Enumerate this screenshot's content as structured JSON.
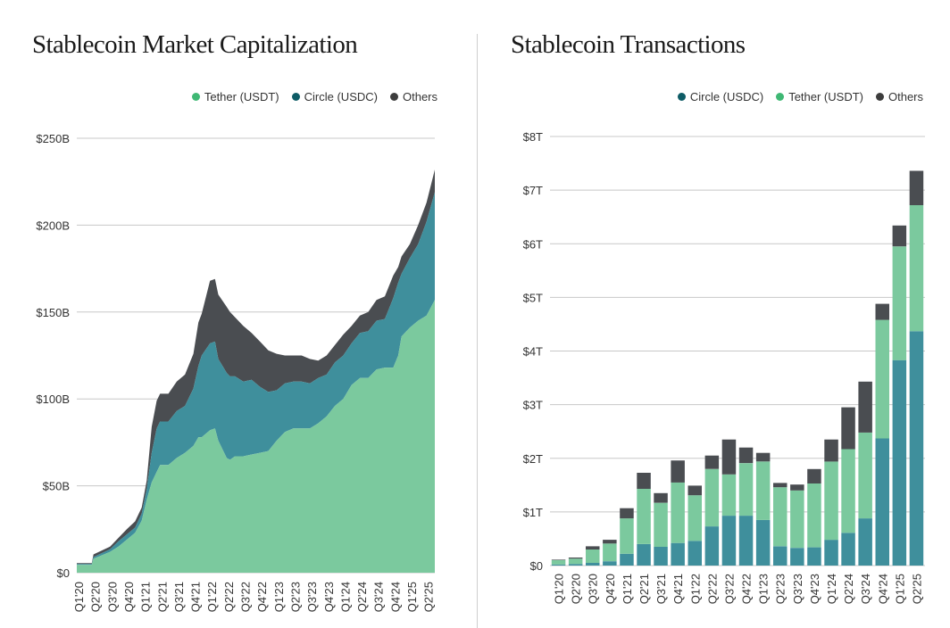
{
  "colors": {
    "tether": "#7bc99e",
    "circle": "#3f8f9c",
    "others": "#4a4d51",
    "circle_dot": "#0e5c66",
    "tether_dot": "#3fb874",
    "others_dot": "#3d3d3d",
    "grid": "#c8c8c8"
  },
  "chart_data": [
    {
      "type": "area",
      "title": "Stablecoin Market Capitalization",
      "legend": [
        {
          "key": "tether",
          "label": "Tether (USDT)"
        },
        {
          "key": "circle",
          "label": "Circle (USDC)"
        },
        {
          "key": "others",
          "label": "Others"
        }
      ],
      "legend_position": "top-right",
      "ylim": [
        0,
        250
      ],
      "yticks": [
        {
          "value": 0,
          "label": "$0"
        },
        {
          "value": 50,
          "label": "$50B"
        },
        {
          "value": 100,
          "label": "$100B"
        },
        {
          "value": 150,
          "label": "$150B"
        },
        {
          "value": 200,
          "label": "$200B"
        },
        {
          "value": 250,
          "label": "$250B"
        }
      ],
      "xlim": [
        0,
        21.5
      ],
      "xticks": [
        {
          "value": 0,
          "label": "Q1'20"
        },
        {
          "value": 1,
          "label": "Q2'20"
        },
        {
          "value": 2,
          "label": "Q3'20"
        },
        {
          "value": 3,
          "label": "Q4'20"
        },
        {
          "value": 4,
          "label": "Q1'21"
        },
        {
          "value": 5,
          "label": "Q2'21"
        },
        {
          "value": 6,
          "label": "Q3'21"
        },
        {
          "value": 7,
          "label": "Q4'21"
        },
        {
          "value": 8,
          "label": "Q1'22"
        },
        {
          "value": 9,
          "label": "Q2'22"
        },
        {
          "value": 10,
          "label": "Q3'22"
        },
        {
          "value": 11,
          "label": "Q4'22"
        },
        {
          "value": 12,
          "label": "Q1'23"
        },
        {
          "value": 13,
          "label": "Q2'23"
        },
        {
          "value": 14,
          "label": "Q3'23"
        },
        {
          "value": 15,
          "label": "Q4'23"
        },
        {
          "value": 16,
          "label": "Q1'24"
        },
        {
          "value": 17,
          "label": "Q2'24"
        },
        {
          "value": 18,
          "label": "Q3'24"
        },
        {
          "value": 19,
          "label": "Q4'24"
        },
        {
          "value": 20,
          "label": "Q1'25"
        },
        {
          "value": 21,
          "label": "Q2'25"
        }
      ],
      "x": [
        0,
        0.9,
        1,
        2,
        2.5,
        3,
        3.5,
        3.9,
        4.2,
        4.5,
        4.8,
        5,
        5.5,
        6,
        6.5,
        7,
        7.3,
        7.5,
        8,
        8.3,
        8.5,
        9,
        9.2,
        9.5,
        10,
        10.5,
        11,
        11.5,
        12,
        12.5,
        13,
        13.5,
        14,
        14.5,
        15,
        15.5,
        16,
        16.5,
        17,
        17.5,
        18,
        18.5,
        19,
        19.3,
        19.5,
        20,
        20.5,
        21,
        21.5
      ],
      "tether": [
        4.5,
        4.5,
        8,
        12,
        15,
        19,
        23,
        30,
        42,
        52,
        58,
        62,
        62,
        66,
        69,
        73,
        78,
        78,
        82,
        83,
        76,
        66,
        65,
        67,
        67,
        68,
        69,
        70,
        76,
        81,
        83,
        83,
        83,
        86,
        90,
        96,
        100,
        108,
        112,
        112,
        117,
        118,
        118,
        125,
        136,
        141,
        145,
        148,
        157
      ],
      "circle": [
        0.5,
        0.5,
        1,
        1.5,
        3,
        3,
        3,
        4,
        6,
        17,
        25,
        25,
        25,
        27,
        27,
        33,
        41,
        47,
        50,
        50,
        47,
        49,
        48,
        46,
        43,
        43,
        38,
        34,
        29,
        28,
        27,
        27,
        26,
        26,
        24,
        25,
        25,
        24,
        26,
        27,
        28,
        28,
        40,
        42,
        36,
        40,
        44,
        54,
        62
      ],
      "others": [
        0.5,
        0.5,
        1.5,
        1.5,
        2,
        3,
        3.5,
        3.5,
        5,
        15,
        16,
        16,
        16,
        17,
        18,
        20,
        25,
        24,
        36,
        36,
        37,
        38,
        37,
        34,
        32,
        27,
        26,
        24,
        21,
        16,
        15,
        15,
        14,
        10,
        11,
        10,
        12,
        10,
        10,
        11,
        12,
        13,
        13,
        9,
        10,
        8,
        11,
        11,
        13
      ]
    },
    {
      "type": "bar",
      "title": "Stablecoin Transactions",
      "legend": [
        {
          "key": "circle",
          "label": "Circle (USDC)"
        },
        {
          "key": "tether",
          "label": "Tether (USDT)"
        },
        {
          "key": "others",
          "label": "Others"
        }
      ],
      "legend_position": "top-right",
      "ylim": [
        0,
        8
      ],
      "yticks": [
        {
          "value": 0,
          "label": "$0"
        },
        {
          "value": 1,
          "label": "$1T"
        },
        {
          "value": 2,
          "label": "$2T"
        },
        {
          "value": 3,
          "label": "$3T"
        },
        {
          "value": 4,
          "label": "$4T"
        },
        {
          "value": 5,
          "label": "$5T"
        },
        {
          "value": 6,
          "label": "$6T"
        },
        {
          "value": 7,
          "label": "$7T"
        },
        {
          "value": 8,
          "label": "$8T"
        }
      ],
      "categories": [
        "Q1'20",
        "Q2'20",
        "Q3'20",
        "Q4'20",
        "Q1'21",
        "Q2'21",
        "Q3'21",
        "Q4'21",
        "Q1'22",
        "Q2'22",
        "Q3'22",
        "Q4'22",
        "Q1'23",
        "Q2'23",
        "Q3'23",
        "Q4'23",
        "Q1'24",
        "Q2'24",
        "Q3'24",
        "Q4'24",
        "Q1'25",
        "Q2'25"
      ],
      "series": [
        {
          "name": "Circle (USDC)",
          "key": "circle",
          "values": [
            0.02,
            0.03,
            0.05,
            0.08,
            0.22,
            0.4,
            0.35,
            0.42,
            0.46,
            0.73,
            0.93,
            0.93,
            0.85,
            0.36,
            0.33,
            0.34,
            0.48,
            0.61,
            0.88,
            2.37,
            3.83,
            4.37
          ]
        },
        {
          "name": "Tether (USDT)",
          "key": "tether",
          "values": [
            0.08,
            0.1,
            0.25,
            0.33,
            0.66,
            1.03,
            0.82,
            1.13,
            0.85,
            1.07,
            0.77,
            0.98,
            1.09,
            1.1,
            1.07,
            1.19,
            1.46,
            1.56,
            1.6,
            2.21,
            2.12,
            2.35
          ]
        },
        {
          "name": "Others",
          "key": "others",
          "values": [
            0.01,
            0.02,
            0.06,
            0.07,
            0.19,
            0.3,
            0.18,
            0.41,
            0.18,
            0.25,
            0.65,
            0.29,
            0.16,
            0.08,
            0.11,
            0.27,
            0.41,
            0.78,
            0.95,
            0.3,
            0.39,
            0.64
          ]
        }
      ]
    }
  ]
}
